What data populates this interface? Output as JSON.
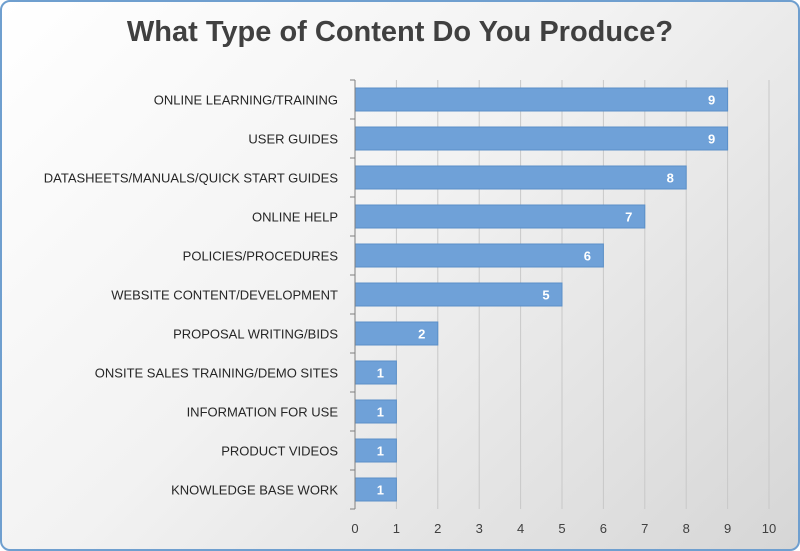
{
  "chart_data": {
    "type": "bar",
    "orientation": "horizontal",
    "title": "What Type of Content Do You Produce?",
    "categories": [
      "ONLINE LEARNING/TRAINING",
      "USER GUIDES",
      "DATASHEETS/MANUALS/QUICK START GUIDES",
      "ONLINE HELP",
      "POLICIES/PROCEDURES",
      "WEBSITE CONTENT/DEVELOPMENT",
      "PROPOSAL WRITING/BIDS",
      "ONSITE SALES TRAINING/DEMO SITES",
      "INFORMATION FOR USE",
      "PRODUCT VIDEOS",
      "KNOWLEDGE BASE WORK"
    ],
    "values": [
      9,
      9,
      8,
      7,
      6,
      5,
      2,
      1,
      1,
      1,
      1
    ],
    "xlim": [
      0,
      10
    ],
    "xticks": [
      0,
      1,
      2,
      3,
      4,
      5,
      6,
      7,
      8,
      9,
      10
    ],
    "grid": true,
    "legend": "none",
    "bar_color": "#6fa1d8",
    "data_labels": true
  }
}
